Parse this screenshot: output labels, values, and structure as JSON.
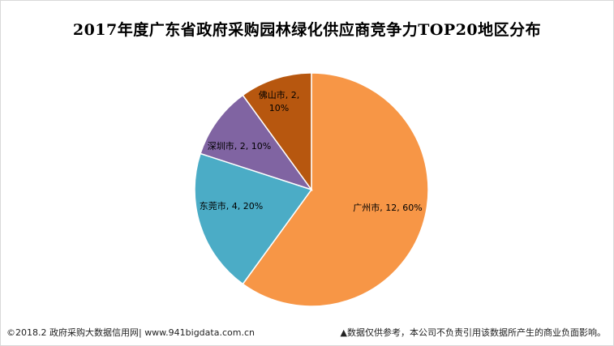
{
  "chart_data": {
    "type": "pie",
    "title": "2017年度广东省政府采购园林绿化供应商竞争力TOP20地区分布",
    "slices": [
      {
        "label": "广州市",
        "value": 12,
        "percent": "60%",
        "color": "#f79646",
        "data_label": "广州市, 12, 60%"
      },
      {
        "label": "东莞市",
        "value": 4,
        "percent": "20%",
        "color": "#4bacc6",
        "data_label": "东莞市, 4, 20%"
      },
      {
        "label": "深圳市",
        "value": 2,
        "percent": "10%",
        "color": "#8064a2",
        "data_label": "深圳市, 2, 10%"
      },
      {
        "label": "佛山市",
        "value": 2,
        "percent": "10%",
        "color": "#b7570f",
        "data_label_lines": [
          "佛山市, 2,",
          "10%"
        ]
      }
    ]
  },
  "footer": {
    "source": "©2018.2 政府采购大数据信用网| www.941bigdata.com.cn",
    "disclaimer": "▲数据仅供参考，本公司不负责引用该数据所产生的商业负面影响。"
  }
}
